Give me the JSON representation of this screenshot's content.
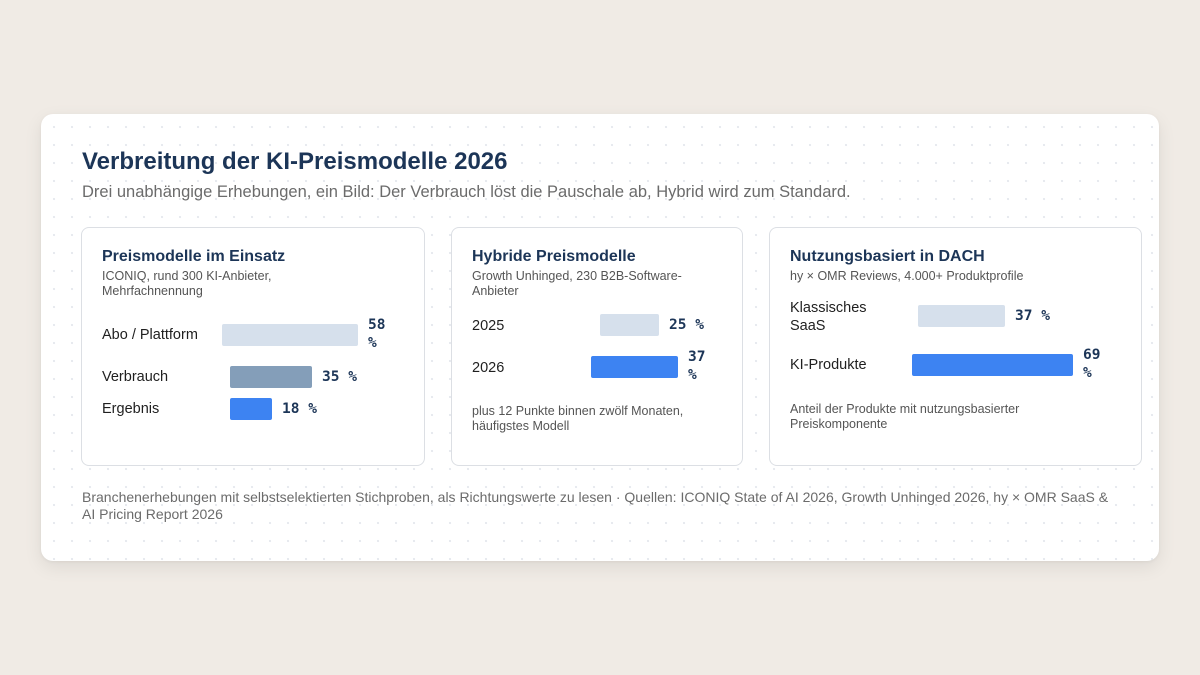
{
  "title": "Verbreitung der KI-Preismodelle 2026",
  "subtitle": "Drei unabhängige Erhebungen, ein Bild: Der Verbrauch löst die Pauschale ab, Hybrid wird zum Standard.",
  "footer": "Branchenerhebungen mit selbstselektierten Stichproben, als Richtungswerte zu lesen · Quellen: ICONIQ State of AI 2026, Growth Unhinged 2026, hy × OMR SaaS & AI Pricing Report 2026",
  "colors": {
    "light": "#d6e0ec",
    "mid": "#849eb9",
    "accent": "#3d83f2",
    "title": "#1c3557"
  },
  "panels": [
    {
      "title": "Preismodelle im Einsatz",
      "source": "ICONIQ, rund 300 KI-Anbieter, Mehrfachnennung",
      "note": "",
      "rows": [
        {
          "label": "Abo / Plattform",
          "value": 58,
          "value_text": "58 %"
        },
        {
          "label": "Verbrauch",
          "value": 35,
          "value_text": "35 %"
        },
        {
          "label": "Ergebnis",
          "value": 18,
          "value_text": "18 %"
        }
      ]
    },
    {
      "title": "Hybride Preismodelle",
      "source": "Growth Unhinged, 230 B2B-Software-Anbieter",
      "note": "plus 12 Punkte binnen zwölf Monaten, häufigstes Modell",
      "rows": [
        {
          "label": "2025",
          "value": 25,
          "value_text": "25 %"
        },
        {
          "label": "2026",
          "value": 37,
          "value_text": "37 %"
        }
      ]
    },
    {
      "title": "Nutzungsbasiert in DACH",
      "source": "hy × OMR Reviews, 4.000+ Produktprofile",
      "note": "Anteil der Produkte mit nutzungsbasierter Preiskomponente",
      "rows": [
        {
          "label": "Klassisches SaaS",
          "value": 37,
          "value_text": "37 %"
        },
        {
          "label": "KI-Produkte",
          "value": 69,
          "value_text": "69 %"
        }
      ]
    }
  ],
  "chart_data": [
    {
      "type": "bar",
      "title": "Preismodelle im Einsatz",
      "categories": [
        "Abo / Plattform",
        "Verbrauch",
        "Ergebnis"
      ],
      "values": [
        58,
        35,
        18
      ],
      "unit": "%"
    },
    {
      "type": "bar",
      "title": "Hybride Preismodelle",
      "categories": [
        "2025",
        "2026"
      ],
      "values": [
        25,
        37
      ],
      "unit": "%"
    },
    {
      "type": "bar",
      "title": "Nutzungsbasiert in DACH",
      "categories": [
        "Klassisches SaaS",
        "KI-Produkte"
      ],
      "values": [
        37,
        69
      ],
      "unit": "%"
    }
  ]
}
